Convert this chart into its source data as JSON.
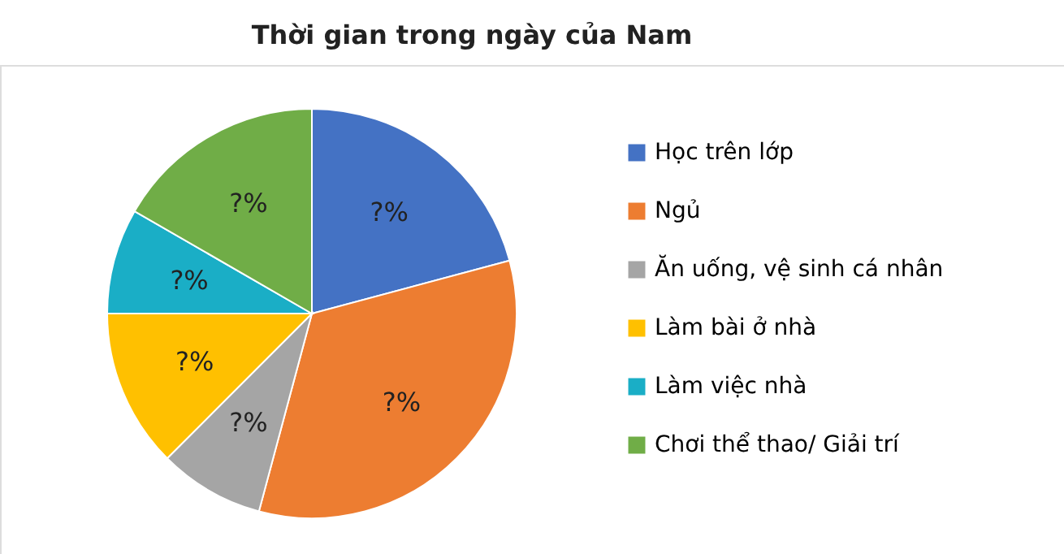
{
  "chart_data": {
    "type": "pie",
    "title": "Thời gian trong ngày của Nam",
    "categories": [
      "Học trên lớp",
      "Ngủ",
      "Ăn uống, vệ sinh cá nhân",
      "Làm bài ở nhà",
      "Làm việc nhà",
      "Chơi thể thao/ Giải trí"
    ],
    "values": [
      20.83,
      33.33,
      8.33,
      12.5,
      8.33,
      16.67
    ],
    "colors": [
      "#4472c4",
      "#ed7d31",
      "#a5a5a5",
      "#ffc000",
      "#1aaec6",
      "#70ad47"
    ],
    "value_labels": [
      "?%",
      "?%",
      "?%",
      "?%",
      "?%",
      "?%"
    ],
    "legend": "right"
  }
}
